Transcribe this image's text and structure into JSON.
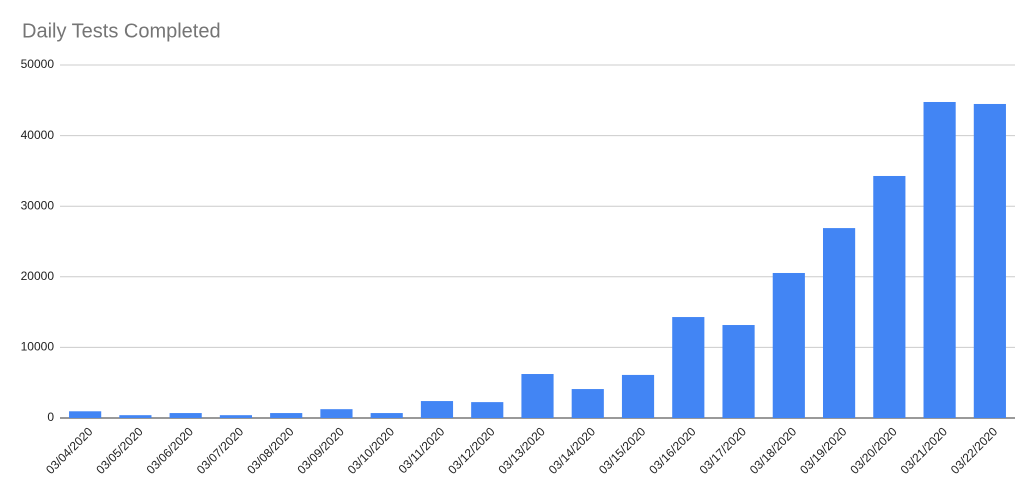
{
  "chart_data": {
    "type": "bar",
    "title": "Daily Tests Completed",
    "categories": [
      "03/04/2020",
      "03/05/2020",
      "03/06/2020",
      "03/07/2020",
      "03/08/2020",
      "03/09/2020",
      "03/10/2020",
      "03/11/2020",
      "03/12/2020",
      "03/13/2020",
      "03/14/2020",
      "03/15/2020",
      "03/16/2020",
      "03/17/2020",
      "03/18/2020",
      "03/19/2020",
      "03/20/2020",
      "03/21/2020",
      "03/22/2020"
    ],
    "values": [
      950,
      400,
      700,
      400,
      700,
      1250,
      700,
      2400,
      2250,
      6230,
      4100,
      6100,
      14300,
      13170,
      20540,
      26900,
      34280,
      44760,
      44480
    ],
    "color": "#4285f4",
    "ylim": [
      0,
      50000
    ],
    "yticks": [
      0,
      10000,
      20000,
      30000,
      40000,
      50000
    ],
    "grid": true
  }
}
